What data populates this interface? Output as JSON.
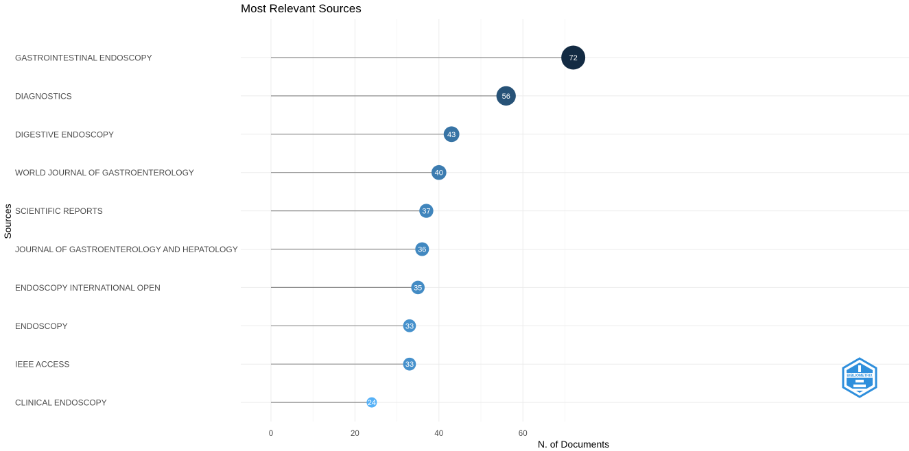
{
  "chart_data": {
    "type": "lollipop",
    "title": "Most Relevant Sources",
    "xlabel": "N. of Documents",
    "ylabel": "Sources",
    "xlim": [
      0,
      74
    ],
    "xticks": [
      0,
      20,
      40,
      60
    ],
    "grid": true,
    "legend": "none",
    "categories": [
      "GASTROINTESTINAL ENDOSCOPY",
      "DIAGNOSTICS",
      "DIGESTIVE ENDOSCOPY",
      "WORLD JOURNAL OF GASTROENTEROLOGY",
      "SCIENTIFIC REPORTS",
      "JOURNAL OF GASTROENTEROLOGY AND HEPATOLOGY",
      "ENDOSCOPY INTERNATIONAL OPEN",
      "ENDOSCOPY",
      "IEEE ACCESS",
      "CLINICAL ENDOSCOPY"
    ],
    "values": [
      72,
      56,
      43,
      40,
      37,
      36,
      35,
      33,
      33,
      24
    ],
    "colors": {
      "low": "#56b1f7",
      "high": "#132b43",
      "stem": "#8c8c8c"
    }
  },
  "logo": {
    "icon": "bibliometrix-logo-icon",
    "text": "BIBLIOMETRIX",
    "color": "#2f8fdc"
  }
}
